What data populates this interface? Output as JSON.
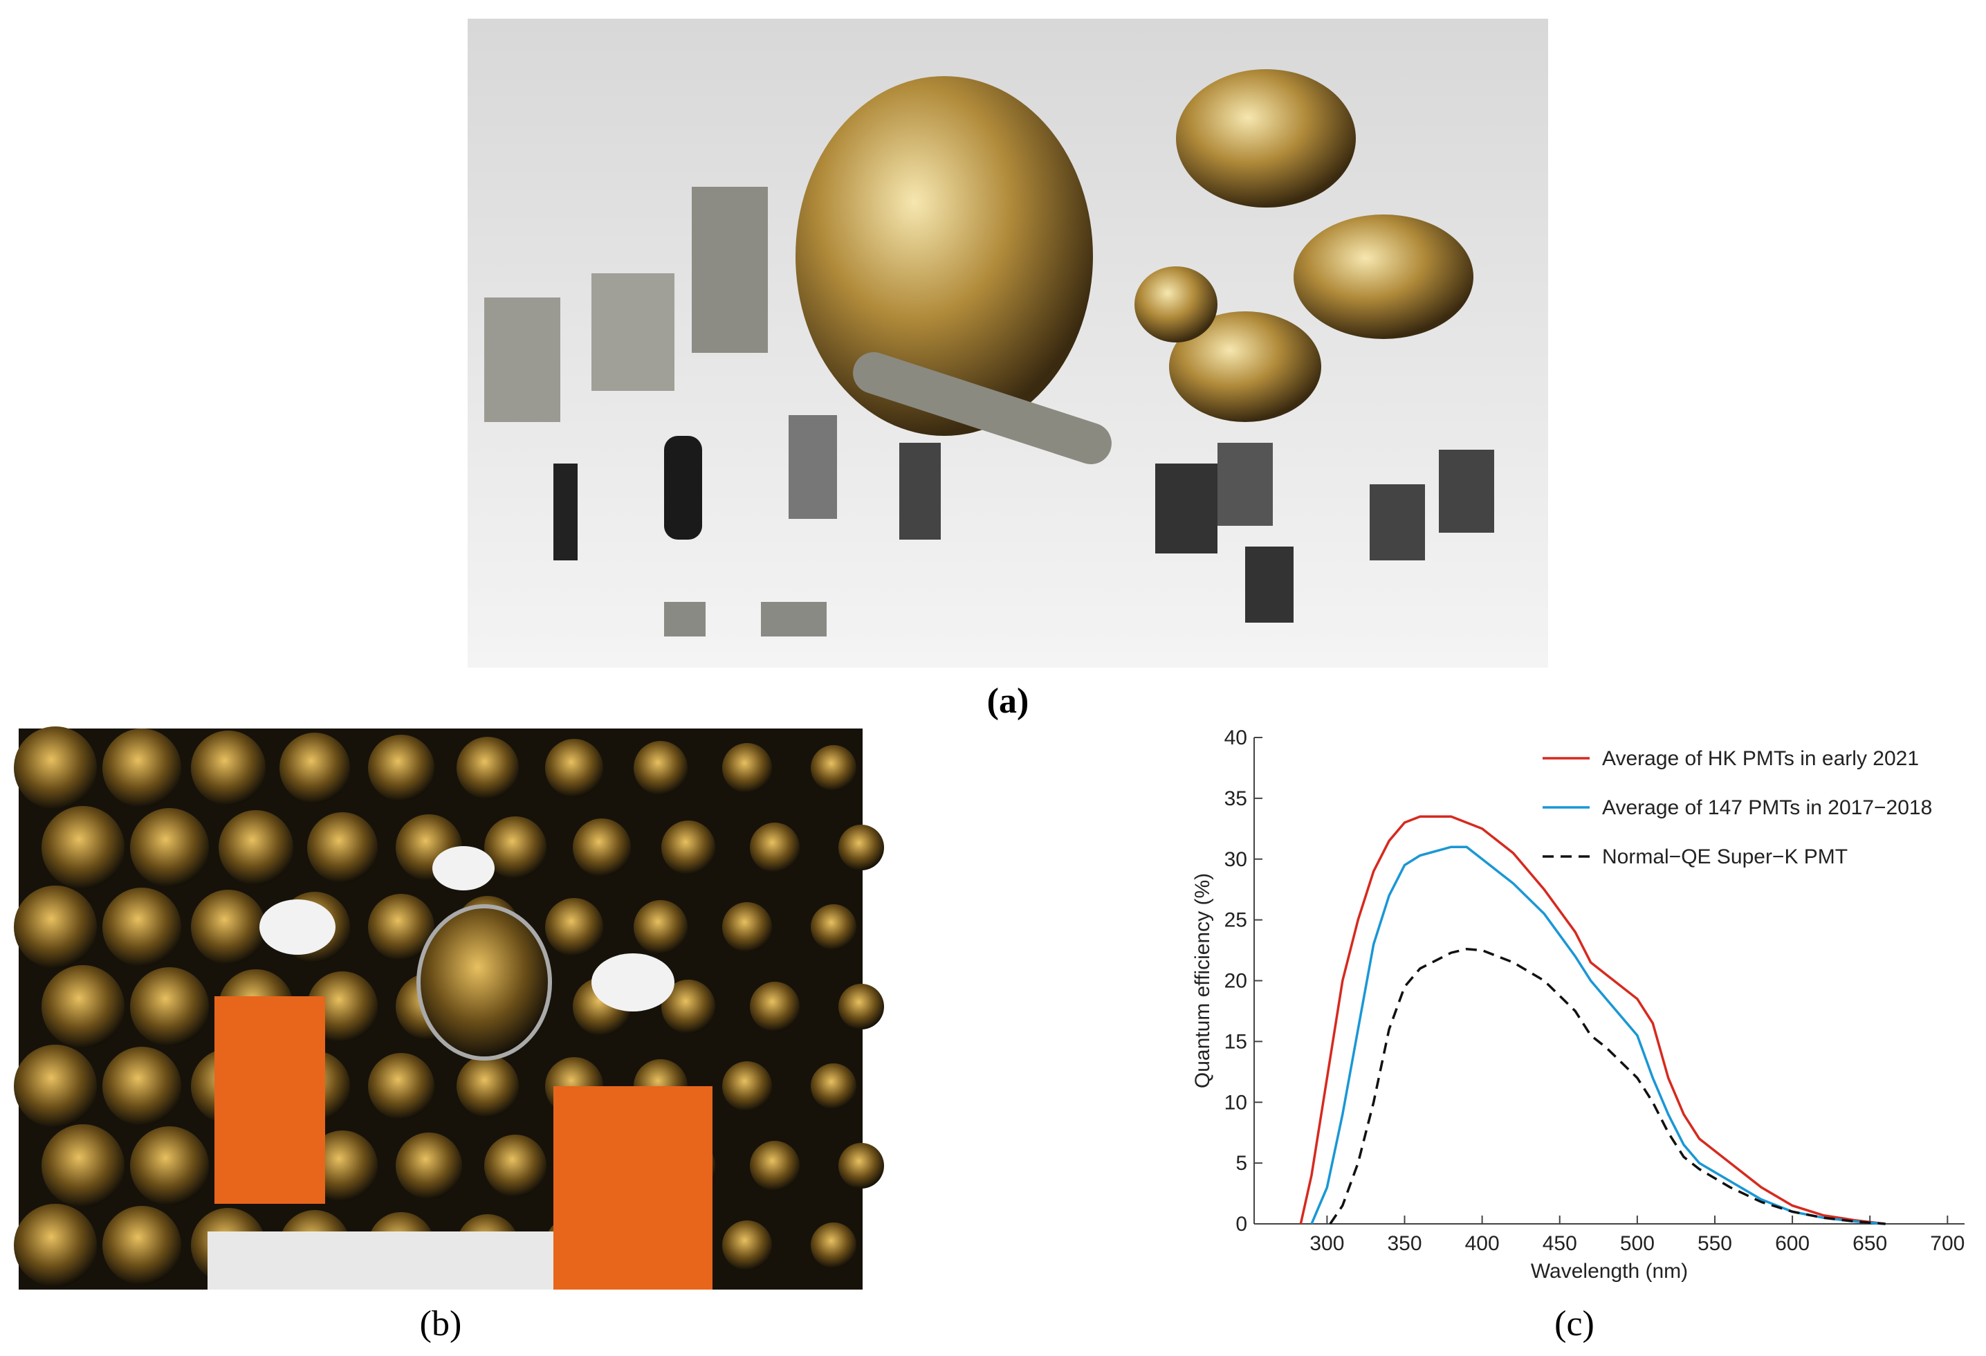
{
  "captions": {
    "a": "(a)",
    "b": "(b)",
    "c": "(c)"
  },
  "chart_data": {
    "type": "line",
    "xlabel": "Wavelength (nm)",
    "ylabel": "Quantum efficiency (%)",
    "xlim": [
      253,
      711
    ],
    "ylim": [
      0,
      40
    ],
    "xticks": [
      300,
      350,
      400,
      450,
      500,
      550,
      600,
      650,
      700
    ],
    "yticks": [
      0,
      5,
      10,
      15,
      20,
      25,
      30,
      35,
      40
    ],
    "legend": "upper right",
    "series": [
      {
        "name": "Average of HK PMTs in early 2021",
        "color": "#d62a1f",
        "dash": false,
        "x": [
          283,
          290,
          300,
          310,
          320,
          330,
          340,
          350,
          360,
          380,
          400,
          420,
          440,
          460,
          470,
          480,
          500,
          510,
          520,
          530,
          540,
          560,
          580,
          600,
          620,
          640,
          660
        ],
        "values": [
          0,
          4,
          12,
          20,
          25,
          29,
          31.5,
          33,
          33.5,
          33.5,
          32.5,
          30.5,
          27.5,
          24,
          21.5,
          20.5,
          18.5,
          16.5,
          12,
          9,
          7,
          5,
          3,
          1.5,
          0.7,
          0.3,
          0
        ]
      },
      {
        "name": "Average of 147 PMTs in 2017−2018",
        "color": "#1a97d5",
        "dash": false,
        "x": [
          290,
          300,
          310,
          320,
          330,
          340,
          350,
          360,
          380,
          390,
          400,
          420,
          440,
          460,
          470,
          480,
          500,
          510,
          520,
          530,
          540,
          560,
          580,
          600,
          620,
          640,
          660
        ],
        "values": [
          0,
          3,
          9,
          16,
          23,
          27,
          29.5,
          30.3,
          31,
          31,
          30,
          28,
          25.5,
          22,
          20,
          18.5,
          15.5,
          12,
          9,
          6.5,
          5,
          3.5,
          2,
          1,
          0.5,
          0.2,
          0
        ]
      },
      {
        "name": "Normal−QE Super−K PMT",
        "color": "#111111",
        "dash": true,
        "x": [
          302,
          310,
          320,
          330,
          340,
          350,
          360,
          380,
          390,
          400,
          420,
          440,
          460,
          470,
          480,
          500,
          510,
          520,
          530,
          540,
          560,
          580,
          600,
          620,
          640,
          660
        ],
        "values": [
          0,
          1.5,
          5,
          10,
          16,
          19.5,
          21,
          22.3,
          22.6,
          22.5,
          21.5,
          20,
          17.5,
          15.5,
          14.5,
          12,
          10,
          7.5,
          5.5,
          4.5,
          3,
          1.8,
          1,
          0.5,
          0.2,
          0
        ]
      }
    ]
  }
}
